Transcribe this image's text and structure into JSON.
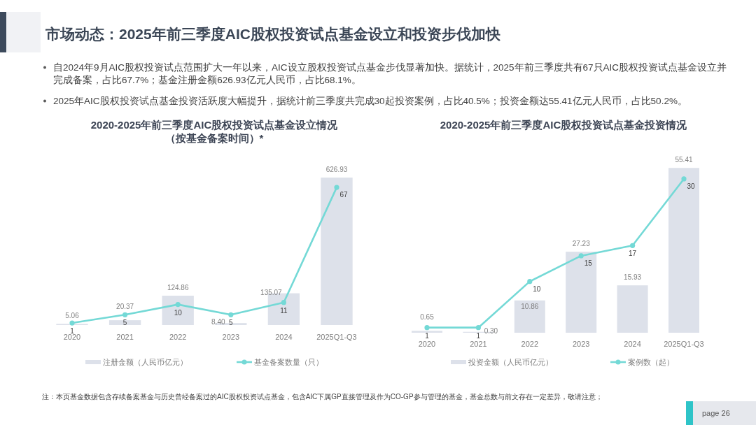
{
  "chart_data": [
    {
      "type": "other",
      "title": "市场动态：2025年前三季度AIC股权投资试点基金设立和投资步伐加快",
      "annotations": [
        "自2024年9月AIC股权投资试点范围扩大一年以来，AIC设立股权投资试点基金步伐显著加快。据统计，2025年前三季度共有67只AIC股权投资试点基金设立并完成备案，占比67.7%；基金注册金额626.93亿元人民币，占比68.1%。",
        "2025年AIC股权投资试点基金投资活跃度大幅提升，据统计前三季度共完成30起投资案例，占比40.5%；投资金额达55.41亿元人民币，占比50.2%。",
        "注：本页基金数据包含存续备案基金与历史曾经备案过的AIC股权投资试点基金，包含AIC下属GP直接管理及作为CO-GP参与管理的基金，基金总数与前文存在一定差异，敬请注意；",
        "page 26"
      ]
    },
    {
      "type": "bar",
      "title": "2020-2025年前三季度AIC股权投资试点基金设立情况",
      "subtitle": "（按基金备案时间）*",
      "categories": [
        "2020",
        "2021",
        "2022",
        "2023",
        "2024",
        "2025Q1-Q3"
      ],
      "series": [
        {
          "name": "注册金额（人民币亿元）",
          "color": "#dde1ea",
          "values": [
            5.06,
            20.37,
            124.86,
            8.4,
            135.07,
            626.93
          ],
          "value_labels": [
            "5.06",
            "20.37",
            "124.86",
            "8.40",
            "135.07",
            "626.93"
          ]
        },
        {
          "name": "基金备案数量（只）",
          "type": "line",
          "axis": "y2",
          "color": "#74d9d6",
          "values": [
            1,
            5,
            10,
            5,
            11,
            67
          ],
          "value_labels": [
            "1",
            "5",
            "10",
            "5",
            "11",
            "67"
          ]
        }
      ],
      "legend": "bottom",
      "marker": "circle"
    },
    {
      "type": "bar",
      "title": "2020-2025年前三季度AIC股权投资试点基金投资情况",
      "categories": [
        "2020",
        "2021",
        "2022",
        "2023",
        "2024",
        "2025Q1-Q3"
      ],
      "series": [
        {
          "name": "投资金额（人民币亿元）",
          "color": "#dde1ea",
          "values": [
            0.65,
            0.3,
            10.86,
            27.23,
            15.93,
            55.41
          ],
          "value_labels": [
            "0.65",
            "0.30",
            "10.86",
            "27.23",
            "15.93",
            "55.41"
          ]
        },
        {
          "name": "案例数（起）",
          "type": "line",
          "axis": "y2",
          "color": "#74d9d6",
          "values": [
            1,
            1,
            10,
            15,
            17,
            30
          ],
          "value_labels": [
            "1",
            "1",
            "10",
            "15",
            "17",
            "30"
          ]
        }
      ],
      "legend": "bottom",
      "marker": "circle"
    }
  ]
}
